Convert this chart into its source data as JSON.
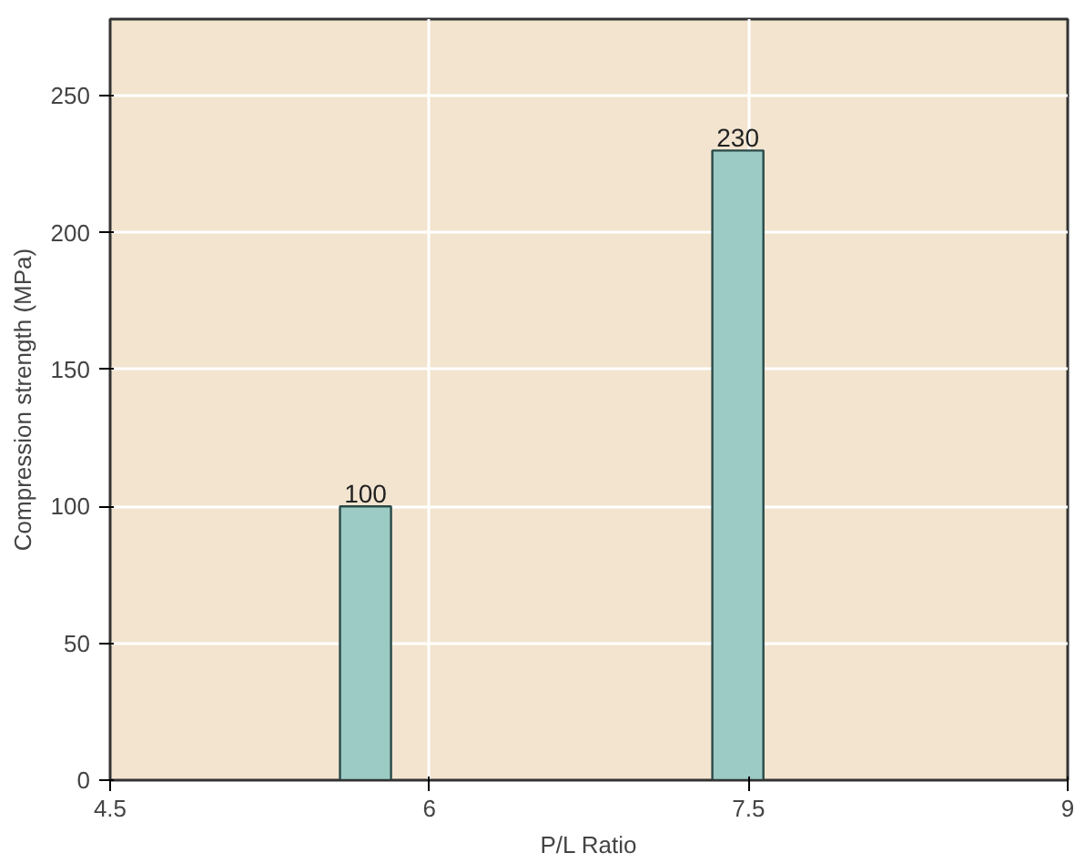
{
  "chart_data": {
    "type": "bar",
    "xlabel": "P/L Ratio",
    "ylabel": "Compression strength (MPa)",
    "x": [
      5.7,
      7.45
    ],
    "values": [
      100,
      230
    ],
    "color": "#9ccac5",
    "xlim": [
      4.5,
      9
    ],
    "xticks": [
      4.5,
      6,
      7.5,
      9
    ],
    "ylim": [
      0,
      278
    ],
    "yticks": [
      0,
      50,
      100,
      150,
      200,
      250
    ],
    "grid": true,
    "data_labels": true
  }
}
